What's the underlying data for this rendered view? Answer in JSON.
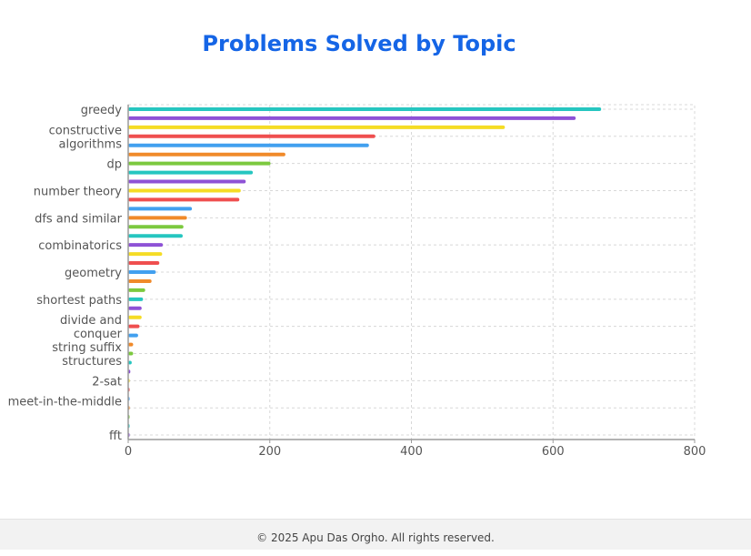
{
  "footer": {
    "text": "© 2025 Apu Das Orgho. All rights reserved."
  },
  "colors": {
    "title": "#1565e6",
    "grid": "#d8d8d8",
    "axis": "#9a9a9a",
    "tick_text": "#555555"
  },
  "chart_data": {
    "type": "bar",
    "orientation": "horizontal",
    "title": "Problems Solved by Topic",
    "xlabel": "",
    "ylabel": "",
    "xlim": [
      0,
      800
    ],
    "x_ticks": [
      0,
      200,
      400,
      600,
      800
    ],
    "grid": true,
    "categories": [
      "greedy",
      "",
      "",
      "constructive algorithms",
      "",
      "",
      "dp",
      "",
      "",
      "number theory",
      "",
      "",
      "dfs and similar",
      "",
      "",
      "combinatorics",
      "",
      "",
      "geometry",
      "",
      "",
      "shortest paths",
      "",
      "",
      "divide and conquer",
      "",
      "",
      "string suffix structures",
      "",
      "",
      "2-sat",
      "",
      "",
      "meet-in-the-middle",
      "",
      "",
      "fft"
    ],
    "values": [
      668,
      632,
      532,
      349,
      340,
      222,
      201,
      176,
      166,
      159,
      157,
      90,
      83,
      78,
      77,
      49,
      48,
      44,
      39,
      33,
      24,
      21,
      19,
      19,
      16,
      14,
      7,
      7,
      5,
      3,
      2,
      2,
      2,
      2,
      1,
      1,
      1
    ],
    "bar_colors": [
      "#26c6c0",
      "#8e52d6",
      "#f5dc25",
      "#ef4f4f",
      "#42a0ef",
      "#f08a2a",
      "#7cc93f"
    ]
  }
}
